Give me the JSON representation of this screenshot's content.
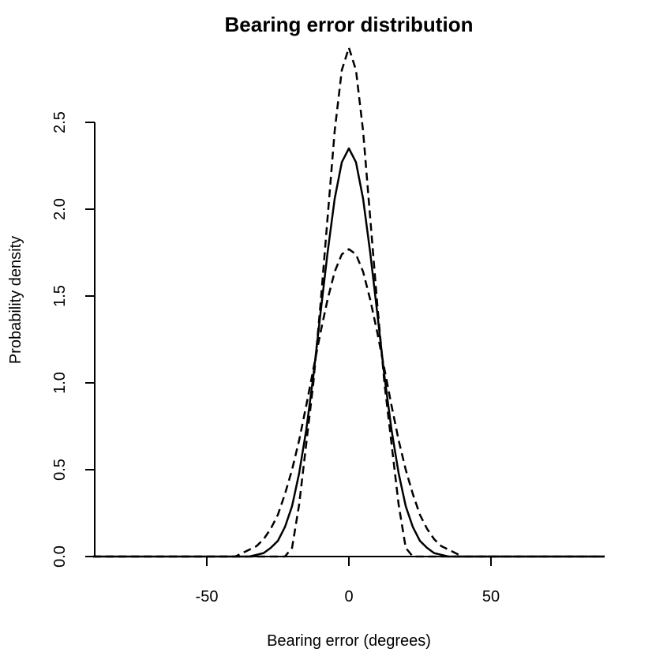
{
  "chart_data": {
    "type": "line",
    "title": "Bearing error distribution",
    "x_label": "Bearing error (degrees)",
    "y_label": "Probability density",
    "x": [
      -90,
      -40,
      -37.5,
      -35,
      -32.5,
      -30,
      -27.5,
      -25,
      -22.5,
      -20,
      -17.5,
      -15,
      -12.5,
      -10,
      -7.5,
      -5,
      -2.5,
      0,
      2.5,
      5,
      7.5,
      10,
      12.5,
      15,
      17.5,
      20,
      22.5,
      25,
      27.5,
      30,
      32.5,
      35,
      37.5,
      40,
      90
    ],
    "series": [
      {
        "color": "#000000",
        "dashed": false,
        "values": [
          0,
          0,
          0,
          0,
          0.01,
          0.02,
          0.05,
          0.09,
          0.17,
          0.29,
          0.48,
          0.73,
          1.04,
          1.4,
          1.75,
          2.06,
          2.27,
          2.35,
          2.27,
          2.06,
          1.75,
          1.4,
          1.04,
          0.73,
          0.48,
          0.29,
          0.17,
          0.09,
          0.05,
          0.02,
          0.01,
          0,
          0,
          0,
          0
        ]
      },
      {
        "color": "#000000",
        "dashed": true,
        "values": [
          0,
          0,
          0.02,
          0.04,
          0.06,
          0.1,
          0.16,
          0.24,
          0.36,
          0.5,
          0.67,
          0.87,
          1.08,
          1.29,
          1.48,
          1.64,
          1.74,
          1.77,
          1.74,
          1.64,
          1.48,
          1.29,
          1.08,
          0.87,
          0.67,
          0.5,
          0.36,
          0.24,
          0.16,
          0.1,
          0.06,
          0.04,
          0.02,
          0,
          0
        ]
      },
      {
        "color": "#000000",
        "dashed": true,
        "values": [
          0,
          0,
          0,
          0,
          0,
          0,
          0,
          0,
          0,
          0.05,
          0.3,
          0.65,
          1.0,
          1.45,
          1.95,
          2.45,
          2.8,
          2.93,
          2.8,
          2.45,
          1.95,
          1.45,
          1.0,
          0.65,
          0.3,
          0.05,
          0,
          0,
          0,
          0,
          0,
          0,
          0,
          0,
          0
        ]
      }
    ],
    "xlim": [
      -90,
      90
    ],
    "xticks": [
      -50,
      0,
      50
    ],
    "ylim": [
      0,
      2.95
    ],
    "yticks": [
      {
        "value": 0,
        "label": "0.0"
      },
      {
        "value": 0.5,
        "label": "0.5"
      },
      {
        "value": 1,
        "label": "1.0"
      },
      {
        "value": 1.5,
        "label": "1.5"
      },
      {
        "value": 2,
        "label": "2.0"
      },
      {
        "value": 2.5,
        "label": "2.5"
      }
    ]
  }
}
